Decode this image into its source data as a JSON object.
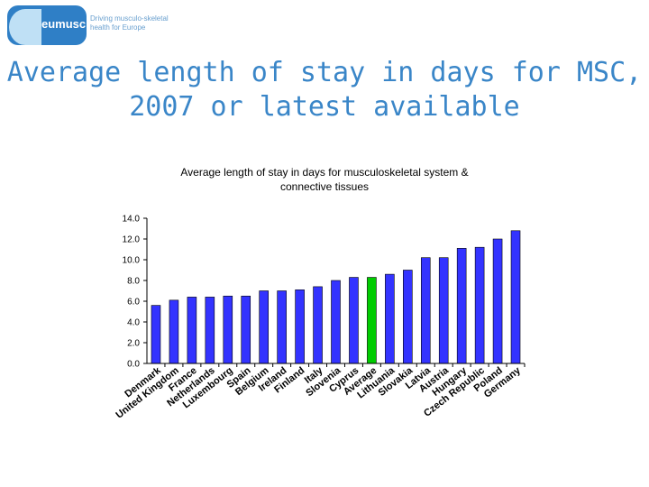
{
  "header": {
    "logo_text": "eumusc.net",
    "logo_tagline_line1": "Driving musculo-skeletal",
    "logo_tagline_line2": "health for Europe"
  },
  "slide": {
    "title_line1": "Average length of stay in days for MSC,",
    "title_line2": "2007 or latest available"
  },
  "colors": {
    "bar": "#3333ff",
    "highlight_bar": "#00cc00",
    "title": "#3a86c8"
  },
  "chart_data": {
    "type": "bar",
    "title_line1": "Average length of stay in days for musculoskeletal system &",
    "title_line2": "connective tissues",
    "xlabel": "",
    "ylabel": "",
    "ylim": [
      0,
      14
    ],
    "yticks": [
      "0.0",
      "2.0",
      "4.0",
      "6.0",
      "8.0",
      "10.0",
      "12.0",
      "14.0"
    ],
    "grid": false,
    "categories": [
      "Denmark",
      "United Kingdom",
      "France",
      "Netherlands",
      "Luxembourg",
      "Spain",
      "Belgium",
      "Ireland",
      "Finland",
      "Italy",
      "Slovenia",
      "Cyprus",
      "Average",
      "Lithuania",
      "Slovakia",
      "Latvia",
      "Austria",
      "Hungary",
      "Czech Republic",
      "Poland",
      "Germany"
    ],
    "values": [
      5.6,
      6.1,
      6.4,
      6.4,
      6.5,
      6.5,
      7.0,
      7.0,
      7.1,
      7.4,
      8.0,
      8.3,
      8.3,
      8.6,
      9.0,
      10.2,
      10.2,
      11.1,
      11.2,
      12.0,
      12.8
    ],
    "highlight_category": "Average"
  }
}
